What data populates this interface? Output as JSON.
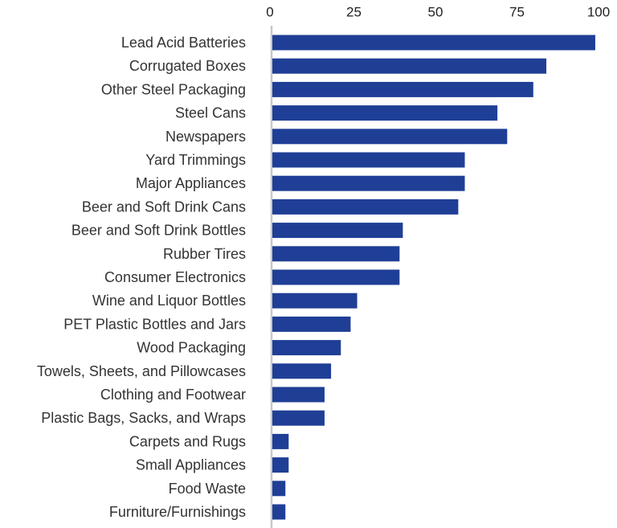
{
  "chart_data": {
    "type": "bar",
    "orientation": "horizontal",
    "title": "",
    "xlabel": "",
    "ylabel": "",
    "xlim": [
      0,
      100
    ],
    "x_ticks": [
      0,
      25,
      50,
      75,
      100
    ],
    "x_tick_labels": [
      "0",
      "25",
      "50",
      "75",
      "100"
    ],
    "axis_position": "top",
    "grid": false,
    "legend": "none",
    "bar_color": "#1f3f96",
    "axis_color": "#c8c8c8",
    "categories": [
      "Lead Acid Batteries",
      "Corrugated Boxes",
      "Other Steel Packaging",
      "Steel Cans",
      "Newspapers",
      "Yard Trimmings",
      "Major Appliances",
      "Beer and Soft Drink Cans",
      "Beer and Soft Drink Bottles",
      "Rubber Tires",
      "Consumer Electronics",
      "Wine and Liquor Bottles",
      "PET Plastic Bottles and Jars",
      "Wood Packaging",
      "Towels, Sheets, and Pillowcases",
      "Clothing and Footwear",
      "Plastic Bags, Sacks, and Wraps",
      "Carpets and Rugs",
      "Small Appliances",
      "Food Waste",
      "Furniture/Furnishings"
    ],
    "values": [
      99,
      84,
      80,
      69,
      72,
      59,
      59,
      57,
      40,
      39,
      39,
      26,
      24,
      21,
      18,
      16,
      16,
      5,
      5,
      4,
      4
    ]
  }
}
